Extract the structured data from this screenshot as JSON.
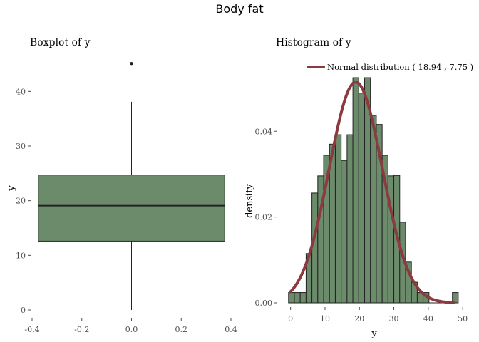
{
  "title": "Body fat",
  "colors": {
    "fill": "#6b8b6b",
    "stroke": "#222222",
    "curve": "#8b3a3f",
    "tick": "#4d4d4d"
  },
  "chart_data": [
    {
      "type": "boxplot",
      "title": "Boxplot of y",
      "xlabel": "",
      "ylabel": "y",
      "xlim": [
        -0.4,
        0.4
      ],
      "ylim": [
        0,
        45
      ],
      "x_ticks": [
        "-0.4",
        "-0.2",
        "0.0",
        "0.2",
        "0.4"
      ],
      "y_ticks": [
        "0",
        "10",
        "20",
        "30",
        "40"
      ],
      "box": {
        "x_min": -0.375,
        "x_max": 0.375,
        "whisker_low": 0,
        "q1": 12.6,
        "median": 19.1,
        "q3": 24.7,
        "whisker_high": 38.1,
        "outliers": [
          45.1
        ]
      },
      "grid": false
    },
    {
      "type": "histogram",
      "title": "Histogram of y",
      "xlabel": "y",
      "ylabel": "density",
      "xlim": [
        -2,
        51
      ],
      "ylim": [
        0,
        0.054
      ],
      "x_ticks": [
        "0",
        "10",
        "20",
        "30",
        "40",
        "50"
      ],
      "y_ticks": [
        "0.00",
        "0.02",
        "0.04"
      ],
      "bin_width": 1.7,
      "bin_start": -0.6,
      "densities": [
        0.0024,
        0.0024,
        0.0024,
        0.0115,
        0.0256,
        0.0296,
        0.0344,
        0.037,
        0.0392,
        0.0332,
        0.0392,
        0.0525,
        0.0489,
        0.0525,
        0.0437,
        0.0416,
        0.0344,
        0.0296,
        0.0297,
        0.0188,
        0.0095,
        0.0048,
        0.0024,
        0.0024,
        0.0,
        0.0,
        0.0,
        0.0,
        0.0024
      ],
      "legend": {
        "label": "Normal distribution ( 18.94 , 7.75 )",
        "position": "top"
      },
      "normal": {
        "mean": 18.94,
        "sd": 7.75,
        "x_from": 0,
        "x_to": 47.5
      },
      "grid": false
    }
  ]
}
